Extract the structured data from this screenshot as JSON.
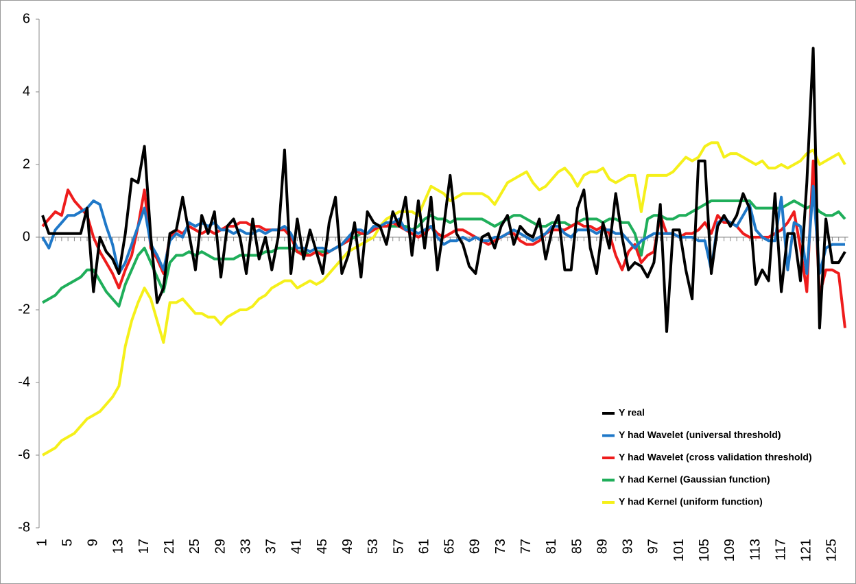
{
  "chart_data": {
    "type": "line",
    "categories": [
      "1",
      null,
      null,
      null,
      "5",
      null,
      null,
      null,
      "9",
      null,
      null,
      null,
      "13",
      null,
      null,
      null,
      "17",
      null,
      null,
      null,
      "21",
      null,
      null,
      null,
      "25",
      null,
      null,
      null,
      "29",
      null,
      null,
      null,
      "33",
      null,
      null,
      null,
      "37",
      null,
      null,
      null,
      "41",
      null,
      null,
      null,
      "45",
      null,
      null,
      null,
      "49",
      null,
      null,
      null,
      "53",
      null,
      null,
      null,
      "57",
      null,
      null,
      null,
      "61",
      null,
      null,
      null,
      "65",
      null,
      null,
      null,
      "69",
      null,
      null,
      null,
      "73",
      null,
      null,
      null,
      "77",
      null,
      null,
      null,
      "81",
      null,
      null,
      null,
      "85",
      null,
      null,
      null,
      "89",
      null,
      null,
      null,
      "93",
      null,
      null,
      null,
      "97",
      null,
      null,
      null,
      "101",
      null,
      null,
      null,
      "105",
      null,
      null,
      null,
      "109",
      null,
      null,
      null,
      "113",
      null,
      null,
      null,
      "117",
      null,
      null,
      null,
      "121",
      null,
      null,
      null,
      "125",
      null,
      null
    ],
    "ylim": [
      -8,
      6
    ],
    "yticks": [
      -8,
      -6,
      -4,
      -2,
      0,
      2,
      4,
      6
    ],
    "legend": "lower right",
    "series": [
      {
        "name": "Y real",
        "color": "#000000",
        "values": [
          0.6,
          0.1,
          0.1,
          0.1,
          0.1,
          0.1,
          0.1,
          0.8,
          -1.5,
          0.0,
          -0.4,
          -0.6,
          -1.0,
          0.1,
          1.6,
          1.5,
          2.5,
          0.0,
          -1.8,
          -1.4,
          0.1,
          0.2,
          1.1,
          0.1,
          -0.9,
          0.6,
          0.1,
          0.7,
          -1.1,
          0.3,
          0.5,
          0.0,
          -1.0,
          0.5,
          -0.6,
          0.0,
          -0.9,
          0.0,
          2.4,
          -1.0,
          0.5,
          -0.6,
          0.2,
          -0.4,
          -1.0,
          0.4,
          1.1,
          -1.0,
          -0.5,
          0.4,
          -1.1,
          0.7,
          0.4,
          0.3,
          -0.2,
          0.7,
          0.3,
          1.1,
          -0.5,
          1.0,
          -0.3,
          1.1,
          -0.9,
          0.3,
          1.7,
          0.1,
          -0.2,
          -0.8,
          -1.0,
          0.0,
          0.1,
          -0.3,
          0.3,
          0.6,
          -0.2,
          0.3,
          0.1,
          0.0,
          0.5,
          -0.6,
          0.2,
          0.6,
          -0.9,
          -0.9,
          0.8,
          1.3,
          -0.3,
          -1.0,
          0.4,
          -0.3,
          1.2,
          0.0,
          -0.9,
          -0.7,
          -0.8,
          -1.1,
          -0.7,
          0.9,
          -2.6,
          0.2,
          0.2,
          -0.9,
          -1.7,
          2.1,
          2.1,
          -1.0,
          0.3,
          0.6,
          0.3,
          0.6,
          1.2,
          0.8,
          -1.3,
          -0.9,
          -1.2,
          1.2,
          -1.5,
          0.1,
          0.1,
          -1.2,
          1.5,
          5.2,
          -2.5,
          0.5,
          -0.7,
          -0.7,
          -0.4
        ]
      },
      {
        "name": "Y had Wavelet (universal threshold)",
        "color": "#1f78c8",
        "values": [
          0.0,
          -0.3,
          0.2,
          0.4,
          0.6,
          0.6,
          0.7,
          0.8,
          1.0,
          0.9,
          0.3,
          -0.2,
          -1.0,
          -0.7,
          -0.2,
          0.3,
          0.8,
          -0.2,
          -0.5,
          -0.9,
          -0.1,
          0.1,
          0.0,
          0.4,
          0.3,
          0.4,
          0.3,
          0.4,
          0.2,
          0.2,
          0.1,
          0.2,
          0.1,
          0.1,
          0.2,
          0.1,
          0.2,
          0.2,
          0.3,
          0.1,
          -0.3,
          -0.3,
          -0.4,
          -0.3,
          -0.3,
          -0.4,
          -0.3,
          -0.2,
          0.0,
          0.2,
          0.2,
          0.1,
          0.3,
          0.3,
          0.4,
          0.4,
          0.5,
          0.2,
          0.2,
          0.1,
          0.2,
          0.3,
          0.0,
          -0.2,
          -0.1,
          -0.1,
          0.0,
          -0.1,
          0.0,
          -0.1,
          -0.1,
          0.0,
          0.0,
          0.1,
          0.2,
          0.1,
          0.0,
          -0.1,
          0.0,
          0.1,
          0.3,
          0.3,
          0.1,
          0.0,
          0.2,
          0.2,
          0.2,
          0.1,
          0.2,
          0.2,
          0.1,
          0.1,
          -0.1,
          -0.3,
          -0.1,
          0.0,
          0.1,
          0.1,
          0.1,
          0.1,
          0.0,
          0.0,
          0.0,
          -0.1,
          -0.1,
          -0.9,
          0.4,
          0.5,
          0.4,
          0.3,
          0.6,
          0.9,
          0.2,
          0.0,
          -0.1,
          -0.1,
          1.1,
          -0.9,
          0.4,
          0.3,
          -1.0,
          1.4,
          -1.0,
          -0.3,
          -0.2,
          -0.2,
          -0.2
        ]
      },
      {
        "name": "Y had Wavelet (cross validation threshold)",
        "color": "#ee1c1c",
        "values": [
          0.3,
          0.5,
          0.7,
          0.6,
          1.3,
          1.0,
          0.8,
          0.6,
          0.0,
          -0.4,
          -0.7,
          -1.0,
          -1.4,
          -0.9,
          -0.5,
          0.3,
          1.3,
          -0.3,
          -0.6,
          -1.0,
          0.0,
          0.2,
          0.1,
          0.3,
          0.2,
          0.1,
          0.2,
          0.1,
          0.2,
          0.3,
          0.3,
          0.4,
          0.4,
          0.3,
          0.3,
          0.2,
          0.2,
          0.2,
          0.2,
          0.0,
          -0.4,
          -0.5,
          -0.5,
          -0.4,
          -0.5,
          -0.4,
          -0.3,
          -0.2,
          -0.1,
          0.2,
          0.1,
          0.1,
          0.2,
          0.3,
          0.3,
          0.4,
          0.3,
          0.2,
          0.1,
          0.0,
          0.1,
          0.3,
          0.1,
          0.0,
          0.1,
          0.2,
          0.2,
          0.1,
          0.0,
          -0.1,
          -0.2,
          -0.1,
          0.0,
          0.1,
          0.1,
          -0.1,
          -0.2,
          -0.2,
          -0.1,
          0.1,
          0.2,
          0.2,
          0.2,
          0.3,
          0.4,
          0.3,
          0.3,
          0.2,
          0.3,
          0.1,
          -0.5,
          -0.9,
          -0.4,
          -0.2,
          -0.7,
          -0.5,
          -0.4,
          0.6,
          0.1,
          0.1,
          0.0,
          0.1,
          0.1,
          0.2,
          0.4,
          0.1,
          0.6,
          0.4,
          0.4,
          0.3,
          0.1,
          0.0,
          0.0,
          0.0,
          0.0,
          0.1,
          0.2,
          0.4,
          0.7,
          -0.3,
          -1.5,
          2.1,
          -1.6,
          -0.9,
          -0.9,
          -1.0,
          -2.5
        ]
      },
      {
        "name": "Y had Kernel (Gaussian function)",
        "color": "#1fae5a",
        "values": [
          -1.8,
          -1.7,
          -1.6,
          -1.4,
          -1.3,
          -1.2,
          -1.1,
          -0.9,
          -0.9,
          -1.2,
          -1.5,
          -1.7,
          -1.9,
          -1.3,
          -0.9,
          -0.5,
          -0.3,
          -0.7,
          -1.1,
          -1.5,
          -0.7,
          -0.5,
          -0.5,
          -0.4,
          -0.5,
          -0.4,
          -0.5,
          -0.6,
          -0.6,
          -0.6,
          -0.6,
          -0.5,
          -0.5,
          -0.5,
          -0.5,
          -0.4,
          -0.4,
          -0.3,
          -0.3,
          -0.3,
          -0.4,
          -0.4,
          -0.5,
          -0.4,
          -0.4,
          -0.4,
          -0.3,
          -0.2,
          -0.1,
          0.0,
          0.1,
          0.1,
          0.2,
          0.3,
          0.3,
          0.3,
          0.3,
          0.3,
          0.2,
          0.3,
          0.5,
          0.6,
          0.5,
          0.5,
          0.4,
          0.5,
          0.5,
          0.5,
          0.5,
          0.5,
          0.4,
          0.3,
          0.4,
          0.5,
          0.6,
          0.6,
          0.5,
          0.4,
          0.3,
          0.3,
          0.4,
          0.4,
          0.4,
          0.3,
          0.4,
          0.5,
          0.5,
          0.5,
          0.4,
          0.5,
          0.5,
          0.4,
          0.4,
          0.1,
          -0.5,
          0.5,
          0.6,
          0.6,
          0.5,
          0.5,
          0.6,
          0.6,
          0.7,
          0.8,
          0.9,
          1.0,
          1.0,
          1.0,
          1.0,
          1.0,
          1.0,
          1.0,
          0.8,
          0.8,
          0.8,
          0.8,
          0.8,
          0.9,
          1.0,
          0.9,
          0.8,
          0.9,
          0.7,
          0.6,
          0.6,
          0.7,
          0.5
        ]
      },
      {
        "name": "Y had Kernel (uniform function)",
        "color": "#f5f01a",
        "values": [
          -6.0,
          -5.9,
          -5.8,
          -5.6,
          -5.5,
          -5.4,
          -5.2,
          -5.0,
          -4.9,
          -4.8,
          -4.6,
          -4.4,
          -4.1,
          -3.0,
          -2.3,
          -1.8,
          -1.4,
          -1.7,
          -2.3,
          -2.9,
          -1.8,
          -1.8,
          -1.7,
          -1.9,
          -2.1,
          -2.1,
          -2.2,
          -2.2,
          -2.4,
          -2.2,
          -2.1,
          -2.0,
          -2.0,
          -1.9,
          -1.7,
          -1.6,
          -1.4,
          -1.3,
          -1.2,
          -1.2,
          -1.4,
          -1.3,
          -1.2,
          -1.3,
          -1.2,
          -1.0,
          -0.8,
          -0.6,
          -0.4,
          -0.3,
          -0.2,
          -0.1,
          0.0,
          0.3,
          0.5,
          0.6,
          0.7,
          0.7,
          0.7,
          0.6,
          1.0,
          1.4,
          1.3,
          1.2,
          1.0,
          1.1,
          1.2,
          1.2,
          1.2,
          1.2,
          1.1,
          0.9,
          1.2,
          1.5,
          1.6,
          1.7,
          1.8,
          1.5,
          1.3,
          1.4,
          1.6,
          1.8,
          1.9,
          1.7,
          1.4,
          1.7,
          1.8,
          1.8,
          1.9,
          1.6,
          1.5,
          1.6,
          1.7,
          1.7,
          0.7,
          1.7,
          1.7,
          1.7,
          1.7,
          1.8,
          2.0,
          2.2,
          2.1,
          2.2,
          2.5,
          2.6,
          2.6,
          2.2,
          2.3,
          2.3,
          2.2,
          2.1,
          2.0,
          2.1,
          1.9,
          1.9,
          2.0,
          1.9,
          2.0,
          2.1,
          2.3,
          2.4,
          2.0,
          2.1,
          2.2,
          2.3,
          2.0
        ]
      }
    ]
  }
}
